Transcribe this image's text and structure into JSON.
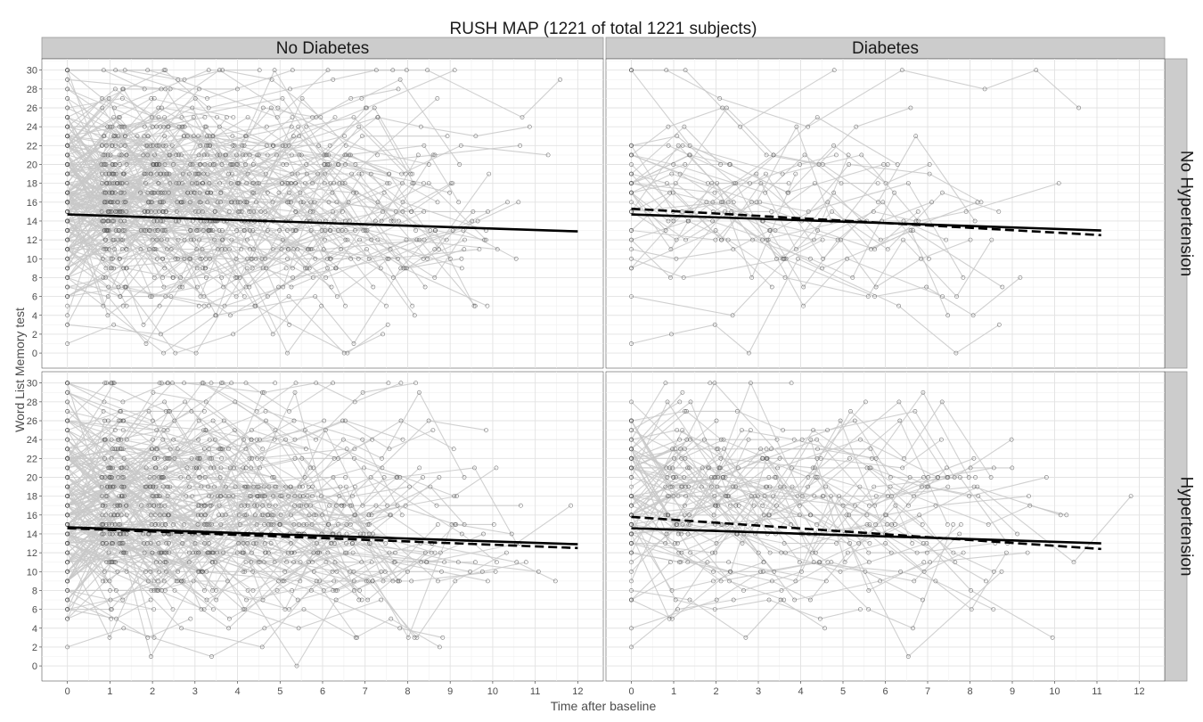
{
  "chart_data": {
    "type": "line",
    "title": "RUSH MAP (1221 of total 1221 subjects)",
    "xlabel": "Time after baseline",
    "ylabel": "Word List Memory test",
    "xlim": [
      -0.6,
      12.6
    ],
    "ylim": [
      -1.6,
      31.2
    ],
    "x_ticks": [
      "0",
      "1",
      "2",
      "3",
      "4",
      "5",
      "6",
      "7",
      "8",
      "9",
      "10",
      "11",
      "12"
    ],
    "y_ticks": [
      "0",
      "2",
      "4",
      "6",
      "8",
      "10",
      "12",
      "14",
      "16",
      "18",
      "20",
      "22",
      "24",
      "26",
      "28",
      "30"
    ],
    "column_facets": [
      "No Diabetes",
      "Diabetes"
    ],
    "row_facets": [
      "No Hypertension",
      "Hypertension"
    ],
    "grid": true,
    "colors": {
      "subject_trajectories": "#c8c8c8",
      "points": "#555555",
      "fit_lines": "#000000",
      "strip_fill": "#cccccc",
      "strip_border": "#999999"
    },
    "panels": [
      {
        "row": "No Hypertension",
        "col": "No Diabetes",
        "n_subjects_drawn": 220,
        "density": "high",
        "series": [
          {
            "style": "solid",
            "x": [
              0,
              12
            ],
            "y": [
              14.7,
              12.9
            ]
          }
        ]
      },
      {
        "row": "No Hypertension",
        "col": "Diabetes",
        "n_subjects_drawn": 40,
        "density": "low",
        "series": [
          {
            "style": "solid",
            "x": [
              0,
              11.1
            ],
            "y": [
              14.7,
              13.0
            ]
          },
          {
            "style": "dashed",
            "x": [
              0,
              11.1
            ],
            "y": [
              15.3,
              12.5
            ]
          }
        ]
      },
      {
        "row": "Hypertension",
        "col": "No Diabetes",
        "n_subjects_drawn": 200,
        "density": "high",
        "series": [
          {
            "style": "solid",
            "x": [
              0,
              12
            ],
            "y": [
              14.7,
              12.9
            ]
          },
          {
            "style": "dashed",
            "x": [
              0,
              12
            ],
            "y": [
              14.6,
              12.5
            ]
          }
        ]
      },
      {
        "row": "Hypertension",
        "col": "Diabetes",
        "n_subjects_drawn": 90,
        "density": "medium",
        "series": [
          {
            "style": "solid",
            "x": [
              0,
              11.1
            ],
            "y": [
              14.6,
              13.0
            ]
          },
          {
            "style": "dashed",
            "x": [
              0,
              11.1
            ],
            "y": [
              15.8,
              12.4
            ]
          }
        ]
      }
    ]
  }
}
